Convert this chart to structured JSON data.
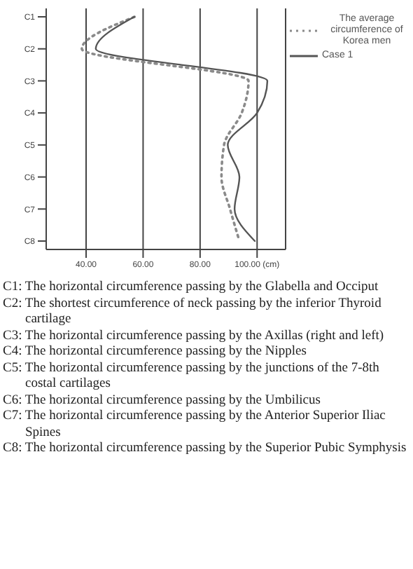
{
  "chart_data": {
    "type": "line",
    "orientation": "horizontal",
    "categories": [
      "C1",
      "C2",
      "C3",
      "C4",
      "C5",
      "C6",
      "C7",
      "C8"
    ],
    "series": [
      {
        "name": "The average circumference of Korea men",
        "color": "#8a8a8a",
        "line_style": "dotted",
        "values": [
          57,
          38.5,
          97,
          94.6,
          88.4,
          87.5,
          90.5,
          93.8
        ]
      },
      {
        "name": "Case 1",
        "color": "#555555",
        "line_style": "solid",
        "values": [
          56.9,
          43.4,
          103.6,
          100,
          89.7,
          93.8,
          92.1,
          99.2
        ]
      }
    ],
    "xlim": [
      26,
      110
    ],
    "xticks": [
      {
        "value": 40,
        "label": "40.00"
      },
      {
        "value": 60,
        "label": "60.00"
      },
      {
        "value": 80,
        "label": "80.00"
      },
      {
        "value": 100,
        "label": "100.00 (cm)"
      }
    ],
    "grid": "x",
    "legend": "top right",
    "marker": "none",
    "annotations": [
      "C1: The horizontal circumference passing by the Glabella and Occiput",
      "C2: The shortest circumference of neck passing by the inferior Thyroid cartilage",
      "C3: The horizontal circumference passing by the Axillas (right and left)",
      "C4: The horizontal circumference passing by the Nipples",
      "C5: The horizontal circumference passing by the junctions of the 7-8th costal cartilages",
      "C6: The horizontal circumference passing by the Umbilicus",
      "C7: The horizontal circumference passing by the Anterior Superior Iliac Spines",
      "C8: The horizontal circumference passing by the Superior Pubic Symphysis"
    ]
  }
}
